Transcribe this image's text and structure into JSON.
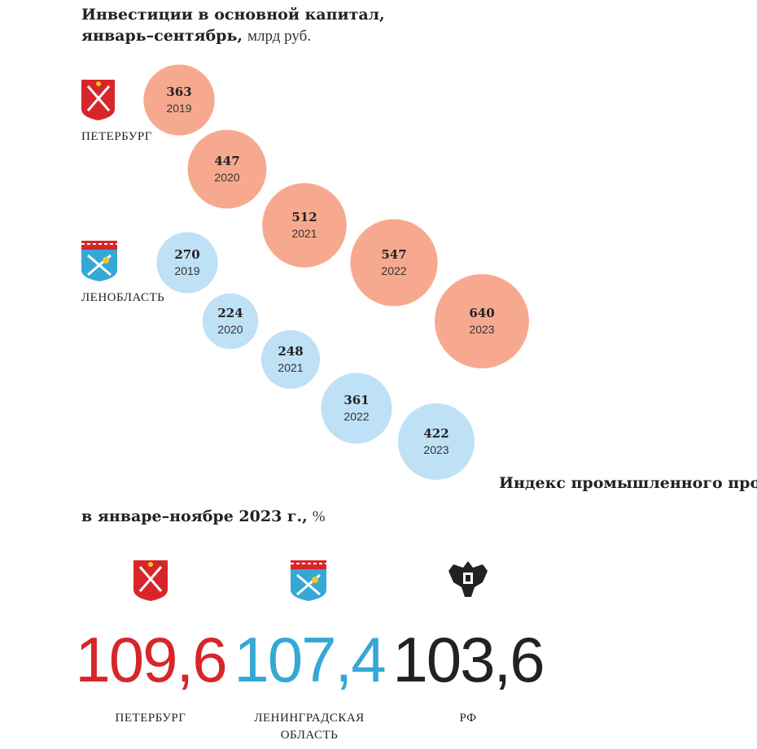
{
  "chart_data": [
    {
      "type": "bubble",
      "title": [
        "Инвестиции в основной капитал,",
        "январь–сентябрь,"
      ],
      "unit": "млрд руб.",
      "categories": [
        "2019",
        "2020",
        "2021",
        "2022",
        "2023"
      ],
      "series": [
        {
          "name": "ПЕТЕРБУРГ",
          "color": "#f7a98f",
          "values": [
            363,
            447,
            512,
            547,
            640
          ]
        },
        {
          "name": "ЛЕНОБЛАСТЬ",
          "color": "#bfe1f6",
          "values": [
            270,
            224,
            248,
            361,
            422
          ]
        }
      ]
    },
    {
      "type": "big-number",
      "title": [
        "Индекс промышленного производства",
        "в январе–ноябре 2023 г.,"
      ],
      "unit": "%",
      "categories": [
        "ПЕТЕРБУРГ",
        "ЛЕНИНГРАДСКАЯ ОБЛАСТЬ",
        "РФ"
      ],
      "values": [
        109.6,
        107.4,
        103.6
      ],
      "value_labels": [
        "109,6",
        "107,4",
        "103,6"
      ],
      "colors": [
        "#d7262a",
        "#35a8d6",
        "#222222"
      ]
    }
  ]
}
